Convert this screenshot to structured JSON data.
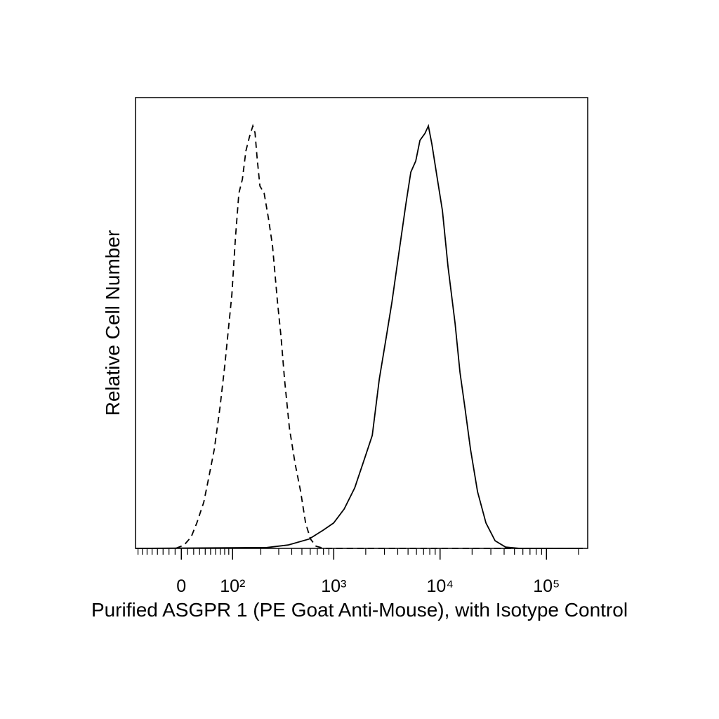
{
  "chart_data": {
    "type": "line",
    "xlabel": "Purified ASGPR 1 (PE Goat Anti-Mouse), with Isotype Control",
    "ylabel": "Relative Cell Number",
    "xscale": "biexponential",
    "xlim": [
      -86,
      244000
    ],
    "ylim": [
      0,
      106.5
    ],
    "xticks": [
      0,
      {
        "value": 100,
        "label": "10²"
      },
      {
        "value": 1000,
        "label": "10³"
      },
      {
        "value": 10000,
        "label": "10⁴"
      },
      {
        "value": 100000,
        "label": "10⁵"
      }
    ],
    "series": [
      {
        "color": "#000000",
        "linestyle": "dashed",
        "x": [
          -9,
          4.5,
          15.9,
          25.2,
          37.4,
          46.5,
          57.4,
          69.3,
          80.4,
          89,
          98,
          107.7,
          117.9,
          128.8,
          140.5,
          153,
          166,
          174.8,
          183.7,
          196,
          216,
          237.7,
          261,
          292,
          316,
          341,
          380,
          430,
          487,
          542,
          603,
          682,
          818,
          219400
        ],
        "values": [
          0,
          0.8,
          2.7,
          6.0,
          10.9,
          16.7,
          23.4,
          33.3,
          43.3,
          51.6,
          59.9,
          73.1,
          83.9,
          87.2,
          93.9,
          97.2,
          99.8,
          98.2,
          92.2,
          85.6,
          83.9,
          78.1,
          71.5,
          58.2,
          49.9,
          40.0,
          28.4,
          20.1,
          13.4,
          6.0,
          2.2,
          0.5,
          0,
          0
        ]
      },
      {
        "color": "#000000",
        "linestyle": "solid",
        "x": [
          -85.6,
          230,
          369,
          585,
          794,
          999,
          1254,
          1576,
          1980,
          2304,
          2683,
          3121,
          3526,
          4103,
          4777,
          5313,
          5909,
          6471,
          7197,
          7766,
          8377,
          9317,
          10523,
          11881,
          13831,
          15381,
          17105,
          19318,
          22485,
          26984,
          32867,
          41274,
          55929,
          219400
        ],
        "values": [
          0,
          0.2,
          0.8,
          2.2,
          4.3,
          6.0,
          9.3,
          14.3,
          21.7,
          26.7,
          40.0,
          49.9,
          58.2,
          69.8,
          81.4,
          88.9,
          91.5,
          96.4,
          98.0,
          99.8,
          95.5,
          88.1,
          79.8,
          66.5,
          53.2,
          41.6,
          33.3,
          23.4,
          13.4,
          6.0,
          1.8,
          0.3,
          0,
          0
        ]
      }
    ]
  }
}
